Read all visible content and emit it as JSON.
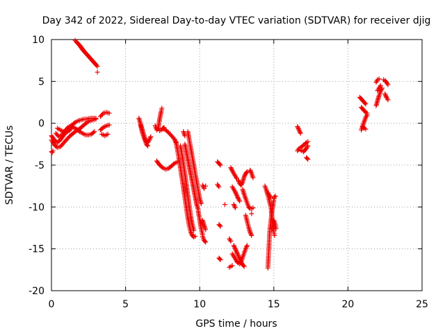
{
  "chart_data": {
    "type": "scatter",
    "title": "Day 342 of 2022, Sidereal Day-to-day VTEC variation (SDTVAR) for receiver djig",
    "xlabel": "GPS time / hours",
    "ylabel": "SDTVAR / TECUs",
    "xlim": [
      0,
      25
    ],
    "ylim": [
      -20,
      10
    ],
    "xticks": [
      0,
      5,
      10,
      15,
      20,
      25
    ],
    "yticks": [
      -20,
      -15,
      -10,
      -5,
      0,
      5,
      10
    ],
    "grid": true,
    "marker": "plus",
    "color": "#ee0000",
    "tracks": [
      [
        [
          0.0,
          -3.4
        ],
        [
          0.05,
          -3.5
        ],
        [
          0.1,
          -3.3
        ]
      ],
      [
        [
          0.0,
          -2.0
        ],
        [
          0.2,
          -2.6
        ],
        [
          0.4,
          -2.9
        ],
        [
          0.6,
          -2.8
        ],
        [
          0.8,
          -2.4
        ],
        [
          1.0,
          -2.0
        ],
        [
          1.2,
          -1.6
        ],
        [
          1.4,
          -1.3
        ],
        [
          1.6,
          -1.0
        ],
        [
          1.8,
          -0.8
        ],
        [
          2.0,
          -0.5
        ],
        [
          2.2,
          -0.2
        ],
        [
          2.4,
          0.1
        ],
        [
          2.6,
          0.3
        ],
        [
          2.8,
          0.4
        ],
        [
          3.0,
          0.5
        ]
      ],
      [
        [
          0.0,
          -1.5
        ],
        [
          0.2,
          -2.0
        ],
        [
          0.4,
          -2.3
        ],
        [
          0.6,
          -2.0
        ],
        [
          0.8,
          -1.5
        ],
        [
          1.0,
          -1.0
        ],
        [
          1.2,
          -0.6
        ],
        [
          1.4,
          -0.2
        ],
        [
          1.6,
          0.1
        ],
        [
          1.8,
          0.3
        ],
        [
          2.0,
          0.4
        ],
        [
          2.2,
          0.5
        ],
        [
          2.4,
          0.5
        ],
        [
          2.6,
          0.6
        ],
        [
          2.8,
          0.6
        ],
        [
          3.0,
          0.6
        ]
      ],
      [
        [
          0.3,
          -1.2
        ],
        [
          0.5,
          -1.6
        ],
        [
          0.7,
          -1.4
        ],
        [
          0.9,
          -0.9
        ],
        [
          1.1,
          -0.5
        ],
        [
          1.3,
          -0.3
        ],
        [
          1.5,
          -0.5
        ],
        [
          1.7,
          -0.7
        ],
        [
          1.9,
          -1.0
        ],
        [
          2.1,
          -1.2
        ],
        [
          2.3,
          -1.4
        ],
        [
          2.5,
          -1.4
        ],
        [
          2.7,
          -1.3
        ],
        [
          2.9,
          -1.0
        ]
      ],
      [
        [
          0.4,
          -0.6
        ],
        [
          0.6,
          -0.8
        ],
        [
          0.8,
          -1.0
        ],
        [
          1.0,
          -1.1
        ],
        [
          1.2,
          -0.9
        ],
        [
          1.4,
          -0.5
        ]
      ],
      [
        [
          1.6,
          9.9
        ],
        [
          1.8,
          9.5
        ],
        [
          2.0,
          9.1
        ],
        [
          2.2,
          8.6
        ],
        [
          2.4,
          8.2
        ],
        [
          2.6,
          7.8
        ],
        [
          2.8,
          7.4
        ],
        [
          3.0,
          7.0
        ]
      ],
      [
        [
          1.7,
          9.7
        ],
        [
          1.9,
          9.3
        ],
        [
          2.1,
          8.8
        ],
        [
          2.3,
          8.4
        ],
        [
          2.5,
          8.0
        ],
        [
          2.7,
          7.6
        ],
        [
          2.9,
          7.2
        ],
        [
          3.1,
          6.8
        ]
      ],
      [
        [
          3.1,
          6.1
        ]
      ],
      [
        [
          3.3,
          0.8
        ],
        [
          3.5,
          1.2
        ],
        [
          3.7,
          1.3
        ],
        [
          3.9,
          1.2
        ]
      ],
      [
        [
          3.3,
          -0.8
        ],
        [
          3.5,
          -0.5
        ],
        [
          3.7,
          -0.3
        ],
        [
          3.9,
          -0.2
        ]
      ],
      [
        [
          3.4,
          -1.3
        ],
        [
          3.6,
          -1.5
        ],
        [
          3.8,
          -1.3
        ]
      ],
      [
        [
          5.9,
          0.6
        ],
        [
          6.0,
          0.0
        ],
        [
          6.1,
          -0.6
        ],
        [
          6.2,
          -1.2
        ],
        [
          6.3,
          -1.8
        ],
        [
          6.4,
          -2.2
        ],
        [
          6.5,
          -2.3
        ],
        [
          6.6,
          -2.0
        ],
        [
          6.7,
          -1.6
        ]
      ],
      [
        [
          6.0,
          -0.2
        ],
        [
          6.1,
          -0.9
        ],
        [
          6.2,
          -1.5
        ],
        [
          6.3,
          -2.0
        ],
        [
          6.4,
          -2.5
        ],
        [
          6.5,
          -2.7
        ]
      ],
      [
        [
          7.0,
          -0.3
        ],
        [
          7.1,
          -0.8
        ],
        [
          7.2,
          -0.6
        ],
        [
          7.3,
          0.5
        ],
        [
          7.4,
          1.4
        ],
        [
          7.45,
          1.8
        ]
      ],
      [
        [
          7.5,
          -0.6
        ],
        [
          7.7,
          -0.8
        ],
        [
          7.9,
          -1.1
        ],
        [
          8.1,
          -1.5
        ],
        [
          8.3,
          -1.9
        ],
        [
          8.4,
          -2.3
        ]
      ],
      [
        [
          7.3,
          -0.9
        ],
        [
          7.5,
          -0.7
        ],
        [
          7.6,
          -0.5
        ]
      ],
      [
        [
          7.1,
          -4.5
        ],
        [
          7.3,
          -5.0
        ],
        [
          7.5,
          -5.3
        ],
        [
          7.7,
          -5.5
        ],
        [
          7.9,
          -5.4
        ],
        [
          8.1,
          -5.1
        ],
        [
          8.3,
          -4.8
        ],
        [
          8.5,
          -4.6
        ]
      ],
      [
        [
          8.4,
          -2.2
        ],
        [
          8.5,
          -3.2
        ],
        [
          8.6,
          -4.2
        ],
        [
          8.7,
          -5.3
        ],
        [
          8.8,
          -6.5
        ],
        [
          8.9,
          -7.7
        ],
        [
          9.0,
          -8.9
        ],
        [
          9.1,
          -10.1
        ],
        [
          9.2,
          -11.3
        ],
        [
          9.3,
          -12.3
        ],
        [
          9.4,
          -13.0
        ],
        [
          9.5,
          -13.4
        ],
        [
          9.6,
          -13.6
        ],
        [
          9.7,
          -13.5
        ]
      ],
      [
        [
          8.7,
          -2.7
        ],
        [
          8.8,
          -3.7
        ],
        [
          8.9,
          -4.8
        ],
        [
          9.0,
          -6.0
        ],
        [
          9.1,
          -7.3
        ],
        [
          9.2,
          -8.6
        ],
        [
          9.3,
          -9.9
        ],
        [
          9.4,
          -11.1
        ],
        [
          9.5,
          -12.1
        ],
        [
          9.6,
          -12.8
        ]
      ],
      [
        [
          8.9,
          -1.0
        ],
        [
          9.0,
          -1.5
        ]
      ],
      [
        [
          9.0,
          -2.5
        ],
        [
          9.1,
          -3.4
        ],
        [
          9.2,
          -4.3
        ],
        [
          9.3,
          -5.2
        ],
        [
          9.4,
          -6.1
        ],
        [
          9.5,
          -7.0
        ],
        [
          9.6,
          -7.9
        ],
        [
          9.7,
          -8.8
        ],
        [
          9.8,
          -9.7
        ],
        [
          9.9,
          -10.3
        ]
      ],
      [
        [
          9.2,
          -1.0
        ],
        [
          9.3,
          -2.0
        ],
        [
          9.4,
          -3.0
        ],
        [
          9.5,
          -4.0
        ],
        [
          9.6,
          -5.0
        ],
        [
          9.7,
          -6.0
        ],
        [
          9.8,
          -7.0
        ],
        [
          9.9,
          -8.0
        ],
        [
          10.0,
          -9.0
        ],
        [
          10.1,
          -9.6
        ]
      ],
      [
        [
          9.9,
          -10.5
        ],
        [
          10.0,
          -11.5
        ],
        [
          10.1,
          -12.6
        ],
        [
          10.2,
          -13.3
        ]
      ],
      [
        [
          10.2,
          -13.5
        ],
        [
          10.3,
          -14.0
        ],
        [
          10.4,
          -14.2
        ]
      ],
      [
        [
          10.2,
          -11.6
        ],
        [
          10.3,
          -12.2
        ],
        [
          10.4,
          -12.7
        ]
      ],
      [
        [
          10.2,
          -7.4
        ],
        [
          10.3,
          -7.8
        ]
      ],
      [
        [
          10.4,
          -7.5
        ]
      ],
      [
        [
          11.2,
          -4.6
        ],
        [
          11.3,
          -4.8
        ],
        [
          11.4,
          -5.0
        ]
      ],
      [
        [
          11.2,
          -7.3
        ],
        [
          11.3,
          -7.6
        ]
      ],
      [
        [
          11.3,
          -12.1
        ],
        [
          11.4,
          -12.3
        ]
      ],
      [
        [
          11.3,
          -16.1
        ],
        [
          11.4,
          -16.3
        ]
      ],
      [
        [
          11.7,
          -9.7
        ]
      ],
      [
        [
          12.1,
          -5.3
        ],
        [
          12.2,
          -5.7
        ],
        [
          12.3,
          -6.0
        ],
        [
          12.4,
          -6.3
        ],
        [
          12.5,
          -6.6
        ]
      ],
      [
        [
          12.2,
          -7.6
        ],
        [
          12.3,
          -7.9
        ],
        [
          12.4,
          -8.2
        ],
        [
          12.5,
          -8.6
        ],
        [
          12.6,
          -9.0
        ],
        [
          12.7,
          -9.3
        ]
      ],
      [
        [
          12.3,
          -9.7
        ],
        [
          12.4,
          -10.1
        ]
      ],
      [
        [
          12.0,
          -13.8
        ],
        [
          12.1,
          -14.1
        ]
      ],
      [
        [
          12.0,
          -17.2
        ],
        [
          12.2,
          -17.0
        ]
      ],
      [
        [
          12.2,
          -15.6
        ],
        [
          12.3,
          -15.9
        ],
        [
          12.4,
          -16.2
        ],
        [
          12.5,
          -16.5
        ],
        [
          12.6,
          -16.7
        ],
        [
          12.7,
          -16.8
        ],
        [
          12.8,
          -16.5
        ],
        [
          12.9,
          -16.0
        ],
        [
          13.0,
          -15.5
        ],
        [
          13.1,
          -15.0
        ],
        [
          13.2,
          -14.6
        ]
      ],
      [
        [
          12.3,
          -14.6
        ],
        [
          12.4,
          -15.0
        ],
        [
          12.5,
          -15.4
        ],
        [
          12.6,
          -15.8
        ],
        [
          12.7,
          -16.2
        ],
        [
          12.8,
          -16.6
        ],
        [
          12.9,
          -16.9
        ],
        [
          13.0,
          -17.1
        ]
      ],
      [
        [
          12.6,
          -6.8
        ],
        [
          12.7,
          -7.2
        ],
        [
          12.8,
          -7.4
        ],
        [
          12.9,
          -7.0
        ],
        [
          13.0,
          -6.4
        ],
        [
          13.1,
          -6.0
        ],
        [
          13.2,
          -5.8
        ]
      ],
      [
        [
          12.9,
          -7.9
        ],
        [
          13.0,
          -8.5
        ],
        [
          13.1,
          -9.0
        ],
        [
          13.2,
          -9.5
        ],
        [
          13.3,
          -10.0
        ],
        [
          13.4,
          -10.2
        ],
        [
          13.5,
          -10.2
        ],
        [
          13.6,
          -10.1
        ]
      ],
      [
        [
          13.1,
          -11.0
        ],
        [
          13.2,
          -11.7
        ],
        [
          13.3,
          -12.4
        ],
        [
          13.4,
          -13.0
        ],
        [
          13.5,
          -13.4
        ]
      ],
      [
        [
          13.4,
          -5.6
        ],
        [
          13.5,
          -6.0
        ],
        [
          13.6,
          -6.5
        ]
      ],
      [
        [
          13.5,
          -10.8
        ]
      ],
      [
        [
          14.4,
          -7.5
        ],
        [
          14.5,
          -8.0
        ],
        [
          14.6,
          -8.6
        ],
        [
          14.7,
          -9.3
        ],
        [
          14.8,
          -10.0
        ],
        [
          14.85,
          -10.7
        ],
        [
          14.9,
          -11.5
        ],
        [
          14.95,
          -12.5
        ],
        [
          15.0,
          -13.0
        ],
        [
          15.05,
          -13.4
        ]
      ],
      [
        [
          14.6,
          -17.3
        ],
        [
          14.62,
          -16.6
        ],
        [
          14.64,
          -15.9
        ],
        [
          14.66,
          -15.2
        ],
        [
          14.68,
          -14.5
        ],
        [
          14.7,
          -13.8
        ],
        [
          14.72,
          -13.1
        ],
        [
          14.75,
          -12.4
        ],
        [
          14.8,
          -11.7
        ],
        [
          14.85,
          -11.0
        ],
        [
          14.9,
          -10.3
        ],
        [
          14.95,
          -9.7
        ],
        [
          15.0,
          -9.2
        ],
        [
          15.05,
          -8.8
        ],
        [
          15.1,
          -8.7
        ]
      ],
      [
        [
          14.6,
          -8.3
        ],
        [
          14.7,
          -8.6
        ],
        [
          14.8,
          -8.9
        ]
      ],
      [
        [
          15.0,
          -11.6
        ],
        [
          15.1,
          -12.1
        ],
        [
          15.15,
          -12.6
        ]
      ],
      [
        [
          16.6,
          -0.4
        ],
        [
          16.7,
          -0.8
        ],
        [
          16.8,
          -1.2
        ]
      ],
      [
        [
          16.6,
          -3.3
        ],
        [
          16.7,
          -3.0
        ],
        [
          16.8,
          -2.9
        ],
        [
          16.9,
          -2.8
        ],
        [
          17.0,
          -2.6
        ],
        [
          17.1,
          -2.5
        ],
        [
          17.2,
          -2.3
        ],
        [
          17.3,
          -2.2
        ]
      ],
      [
        [
          16.8,
          -3.2
        ],
        [
          16.9,
          -3.3
        ],
        [
          17.0,
          -3.4
        ],
        [
          17.1,
          -3.2
        ],
        [
          17.2,
          -3.0
        ],
        [
          17.3,
          -2.7
        ]
      ],
      [
        [
          17.2,
          -4.1
        ],
        [
          17.3,
          -4.3
        ]
      ],
      [
        [
          20.8,
          3.1
        ],
        [
          20.9,
          2.9
        ],
        [
          21.0,
          2.7
        ],
        [
          21.1,
          2.5
        ],
        [
          21.2,
          2.3
        ]
      ],
      [
        [
          20.9,
          1.9
        ],
        [
          21.0,
          1.7
        ],
        [
          21.1,
          1.5
        ],
        [
          21.2,
          1.3
        ],
        [
          21.3,
          1.2
        ]
      ],
      [
        [
          20.9,
          -0.8
        ],
        [
          21.0,
          -0.3
        ],
        [
          21.1,
          0.2
        ],
        [
          21.2,
          0.7
        ],
        [
          21.3,
          1.0
        ]
      ],
      [
        [
          21.0,
          -0.4
        ],
        [
          21.1,
          -0.6
        ],
        [
          21.2,
          -0.7
        ]
      ],
      [
        [
          21.9,
          2.1
        ],
        [
          22.0,
          2.7
        ],
        [
          22.1,
          3.3
        ],
        [
          22.2,
          3.8
        ],
        [
          22.3,
          4.2
        ]
      ],
      [
        [
          21.9,
          4.9
        ],
        [
          22.0,
          5.2
        ],
        [
          22.1,
          5.3
        ]
      ],
      [
        [
          22.0,
          3.9
        ],
        [
          22.1,
          4.2
        ],
        [
          22.2,
          4.5
        ]
      ],
      [
        [
          22.4,
          5.2
        ],
        [
          22.5,
          5.1
        ],
        [
          22.6,
          4.9
        ],
        [
          22.7,
          4.6
        ]
      ],
      [
        [
          22.5,
          3.5
        ],
        [
          22.6,
          3.1
        ],
        [
          22.7,
          2.8
        ]
      ]
    ]
  }
}
